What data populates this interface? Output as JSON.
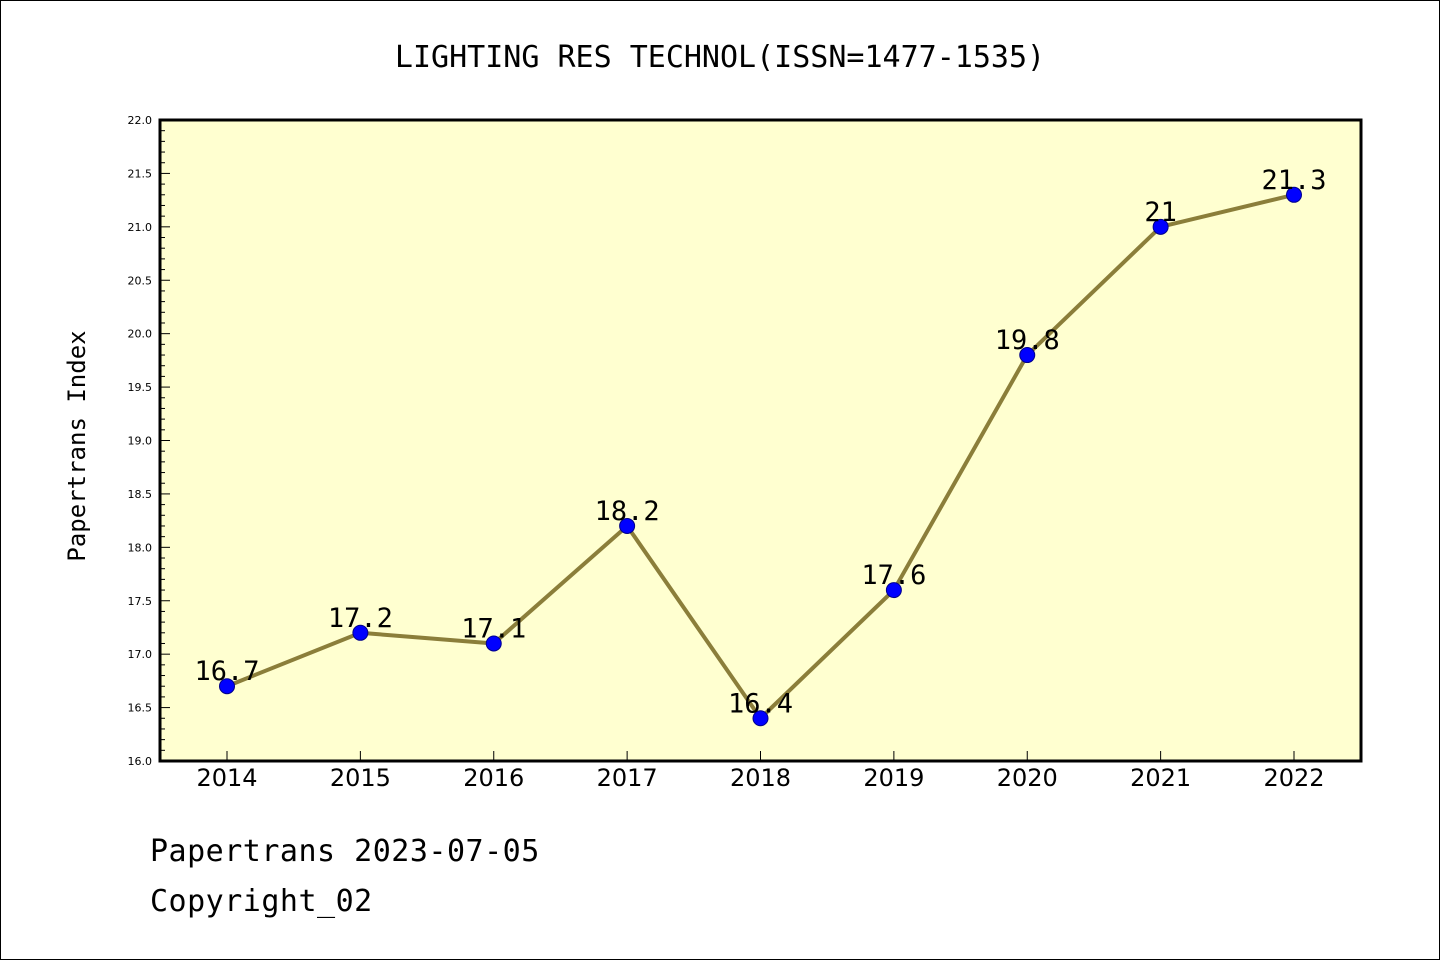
{
  "chart_data": {
    "type": "line",
    "title": "LIGHTING RES TECHNOL(ISSN=1477-1535)",
    "xlabel": "",
    "ylabel": "Papertrans Index",
    "categories": [
      "2014",
      "2015",
      "2016",
      "2017",
      "2018",
      "2019",
      "2020",
      "2021",
      "2022"
    ],
    "series": [
      {
        "values": [
          16.7,
          17.2,
          17.1,
          18.2,
          16.4,
          17.6,
          19.8,
          21,
          21.3
        ],
        "data_labels": [
          "16.7",
          "17.2",
          "17.1",
          "18.2",
          "16.4",
          "17.6",
          "19.8",
          "21",
          "21.3"
        ]
      }
    ],
    "ylim": [
      16.0,
      22.0
    ],
    "yticks": [
      "16.0",
      "16.5",
      "17.0",
      "17.5",
      "18.0",
      "18.5",
      "19.0",
      "19.5",
      "20.0",
      "20.5",
      "21.0",
      "21.5",
      "22.0"
    ],
    "grid": false,
    "legend": "none",
    "colors": {
      "plot_background": "#ffffd0",
      "line": "#8b7e3a",
      "marker_fill": "#0000ff",
      "marker_edge": "#00008b"
    }
  },
  "footer": {
    "date_text": "Papertrans 2023-07-05",
    "copyright_text": "Copyright_02"
  }
}
